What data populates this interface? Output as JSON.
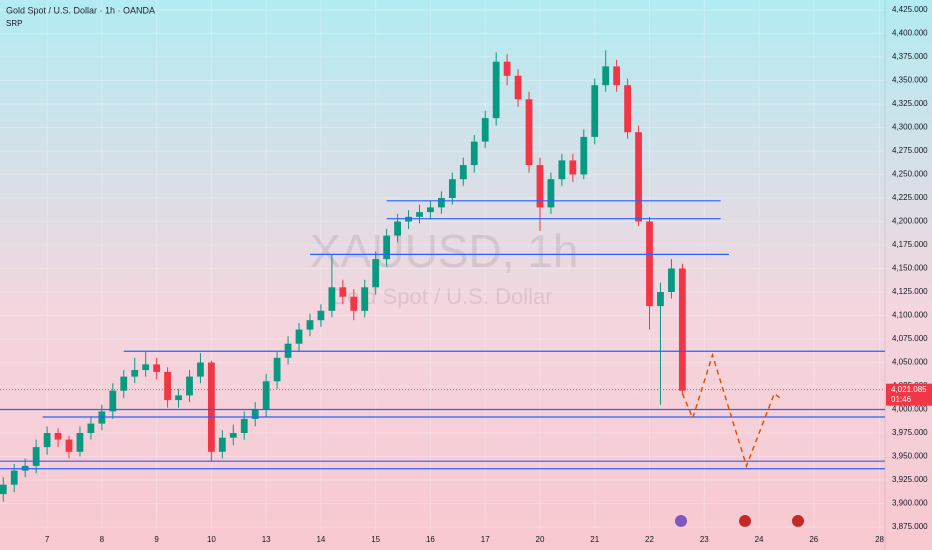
{
  "chart_data": {
    "type": "candlestick",
    "title": "Gold Spot / U.S. Dollar · 1h · OANDA",
    "subtitle": "SRP",
    "watermark": "XAUUSD, 1h",
    "watermark_sub": "Gold Spot / U.S. Dollar",
    "up_color": "#089981",
    "down_color": "#f23645",
    "xlim": [
      -0.86,
      15.3
    ],
    "ylim": [
      3875,
      4425
    ],
    "xticks": [
      {
        "value": 0,
        "label": "7"
      },
      {
        "value": 1,
        "label": "8"
      },
      {
        "value": 2,
        "label": "9"
      },
      {
        "value": 3,
        "label": "10"
      },
      {
        "value": 4,
        "label": "13"
      },
      {
        "value": 5,
        "label": "14"
      },
      {
        "value": 6,
        "label": "15"
      },
      {
        "value": 7,
        "label": "16"
      },
      {
        "value": 8,
        "label": "17"
      },
      {
        "value": 9,
        "label": "20"
      },
      {
        "value": 10,
        "label": "21"
      },
      {
        "value": 11,
        "label": "22"
      },
      {
        "value": 12,
        "label": "23"
      },
      {
        "value": 13,
        "label": "24"
      },
      {
        "value": 14,
        "label": "26"
      },
      {
        "value": 15.2,
        "label": "28"
      }
    ],
    "yticks": [
      {
        "value": 4425,
        "label": "4,425.000"
      },
      {
        "value": 4400,
        "label": "4,400.000"
      },
      {
        "value": 4375,
        "label": "4,375.000"
      },
      {
        "value": 4350,
        "label": "4,350.000"
      },
      {
        "value": 4325,
        "label": "4,325.000"
      },
      {
        "value": 4300,
        "label": "4,300.000"
      },
      {
        "value": 4275,
        "label": "4,275.000"
      },
      {
        "value": 4250,
        "label": "4,250.000"
      },
      {
        "value": 4225,
        "label": "4,225.000"
      },
      {
        "value": 4200,
        "label": "4,200.000"
      },
      {
        "value": 4175,
        "label": "4,175.000"
      },
      {
        "value": 4150,
        "label": "4,150.000"
      },
      {
        "value": 4125,
        "label": "4,125.000"
      },
      {
        "value": 4100,
        "label": "4,100.000"
      },
      {
        "value": 4075,
        "label": "4,075.000"
      },
      {
        "value": 4050,
        "label": "4,050.000"
      },
      {
        "value": 4025,
        "label": "4,025.000"
      },
      {
        "value": 4000,
        "label": "4,000.000"
      },
      {
        "value": 3975,
        "label": "3,975.000"
      },
      {
        "value": 3950,
        "label": "3,950.000"
      },
      {
        "value": 3925,
        "label": "3,925.000"
      },
      {
        "value": 3900,
        "label": "3,900.000"
      },
      {
        "value": 3875,
        "label": "3,875.000"
      }
    ],
    "x": [
      -0.8,
      -0.6,
      -0.4,
      -0.2,
      0,
      0.2,
      0.4,
      0.6,
      0.8,
      1,
      1.2,
      1.4,
      1.6,
      1.8,
      2,
      2.2,
      2.4,
      2.6,
      2.8,
      3,
      3.2,
      3.4,
      3.6,
      3.8,
      4,
      4.2,
      4.4,
      4.6,
      4.8,
      5,
      5.2,
      5.4,
      5.6,
      5.8,
      6,
      6.2,
      6.4,
      6.6,
      6.8,
      7,
      7.2,
      7.4,
      7.6,
      7.8,
      8,
      8.2,
      8.4,
      8.6,
      8.8,
      9,
      9.2,
      9.4,
      9.6,
      9.8,
      10,
      10.2,
      10.4,
      10.6,
      10.8,
      11,
      11.2,
      11.4,
      11.6
    ],
    "open": [
      3910,
      3920,
      3935,
      3940,
      3960,
      3975,
      3968,
      3955,
      3975,
      3985,
      3998,
      4020,
      4035,
      4042,
      4048,
      4040,
      4010,
      4015,
      4035,
      4050,
      3955,
      3970,
      3975,
      3990,
      4000,
      4030,
      4055,
      4070,
      4085,
      4095,
      4105,
      4130,
      4120,
      4105,
      4130,
      4160,
      4185,
      4200,
      4205,
      4210,
      4215,
      4225,
      4245,
      4260,
      4285,
      4310,
      4370,
      4355,
      4330,
      4260,
      4215,
      4245,
      4265,
      4250,
      4290,
      4345,
      4365,
      4345,
      4295,
      4200,
      4110,
      4125,
      4150
    ],
    "high": [
      3928,
      3942,
      3948,
      3968,
      3982,
      3980,
      3972,
      3982,
      3992,
      4005,
      4028,
      4042,
      4055,
      4062,
      4055,
      4045,
      4022,
      4042,
      4060,
      4052,
      3978,
      3984,
      3998,
      4008,
      4038,
      4062,
      4078,
      4092,
      4102,
      4112,
      4165,
      4138,
      4128,
      4138,
      4168,
      4192,
      4208,
      4212,
      4218,
      4222,
      4232,
      4252,
      4268,
      4292,
      4318,
      4380,
      4378,
      4362,
      4338,
      4268,
      4252,
      4272,
      4272,
      4298,
      4352,
      4382,
      4372,
      4352,
      4302,
      4205,
      4135,
      4160,
      4155
    ],
    "low": [
      3902,
      3912,
      3928,
      3932,
      3952,
      3960,
      3948,
      3950,
      3968,
      3978,
      3990,
      4012,
      4028,
      4035,
      4032,
      4002,
      4002,
      4008,
      4028,
      3945,
      3948,
      3962,
      3968,
      3982,
      3992,
      4022,
      4048,
      4062,
      4078,
      4088,
      4098,
      4112,
      4095,
      4098,
      4122,
      4152,
      4178,
      4192,
      4198,
      4202,
      4208,
      4218,
      4238,
      4252,
      4278,
      4302,
      4345,
      4322,
      4252,
      4190,
      4208,
      4238,
      4242,
      4245,
      4282,
      4338,
      4338,
      4288,
      4195,
      4085,
      4005,
      4118,
      4015
    ],
    "close": [
      3920,
      3935,
      3940,
      3960,
      3975,
      3968,
      3955,
      3975,
      3985,
      3998,
      4020,
      4035,
      4042,
      4048,
      4040,
      4010,
      4015,
      4035,
      4050,
      3955,
      3970,
      3975,
      3990,
      4000,
      4030,
      4055,
      4070,
      4085,
      4095,
      4105,
      4130,
      4120,
      4105,
      4130,
      4160,
      4185,
      4200,
      4205,
      4210,
      4215,
      4225,
      4245,
      4260,
      4285,
      4310,
      4370,
      4355,
      4330,
      4260,
      4215,
      4245,
      4265,
      4250,
      4290,
      4345,
      4365,
      4345,
      4295,
      4200,
      4110,
      4125,
      4150,
      4020
    ],
    "levels": {
      "color": "#2962ff",
      "values": [
        4222,
        4203,
        4165,
        4062,
        4000,
        3992,
        3945,
        3937
      ],
      "x_start": [
        6.2,
        6.2,
        4.8,
        1.4,
        -0.86,
        -0.08,
        -0.86,
        -0.86
      ],
      "x_end": [
        12.3,
        12.3,
        12.45,
        15.3,
        15.3,
        15.3,
        15.3,
        15.3
      ]
    },
    "projection": {
      "color": "#e65100",
      "x": [
        11.6,
        11.79,
        12.15,
        12.77,
        13.28,
        13.43
      ],
      "values": [
        4017,
        3991,
        4058,
        3940,
        4017,
        4010
      ]
    },
    "last_price": {
      "value": 4021.085,
      "label": "4,021.085",
      "countdown": "01:46",
      "color": "#f23645"
    }
  }
}
